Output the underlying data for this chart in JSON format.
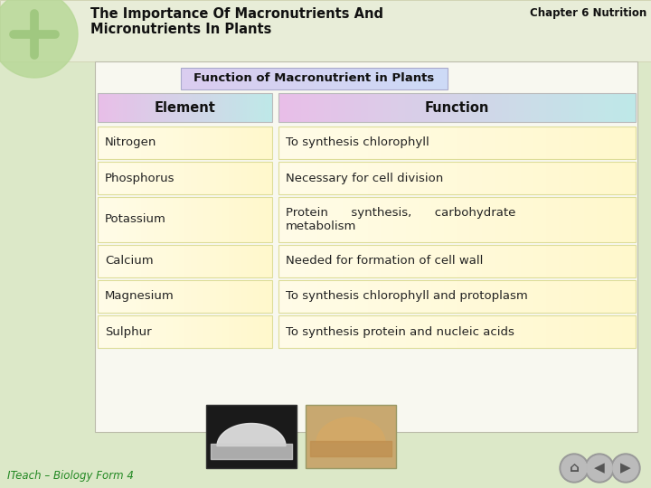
{
  "bg_color": "#dce8c8",
  "top_bar_color": "#e8edd8",
  "content_bg": "#f8f8f0",
  "chapter_text": "Chapter 6 Nutrition",
  "title_text": "The Importance Of Macronutrients And\nMicronutrients In Plants",
  "subtitle_text": "Function of Macronutrient in Plants",
  "header_element": "Element",
  "header_function": "Function",
  "rows": [
    {
      "element": "Nitrogen",
      "function": "To synthesis chlorophyll"
    },
    {
      "element": "Phosphorus",
      "function": "Necessary for cell division"
    },
    {
      "element": "Potassium",
      "function": "Protein      synthesis,      carbohydrate\nmetabolism"
    },
    {
      "element": "Calcium",
      "function": "Needed for formation of cell wall"
    },
    {
      "element": "Magnesium",
      "function": "To synthesis chlorophyll and protoplasm"
    },
    {
      "element": "Sulphur",
      "function": "To synthesis protein and nucleic acids"
    }
  ],
  "cell_bg": "#fffde0",
  "cell_border": "#dddd99",
  "header_bg_element_left": "#e8b8e8",
  "header_bg_element_right": "#b8e8e8",
  "header_bg_func_left": "#e8b8e8",
  "header_bg_func_right": "#b8e8e8",
  "subtitle_bg_left": "#d8c8f0",
  "subtitle_bg_right": "#c8d8f8",
  "title_color": "#111111",
  "chapter_color": "#111111",
  "footer_text": "ITeach – Biology Form 4",
  "circle_color": "#b8d898",
  "plus_color": "#a0c880"
}
